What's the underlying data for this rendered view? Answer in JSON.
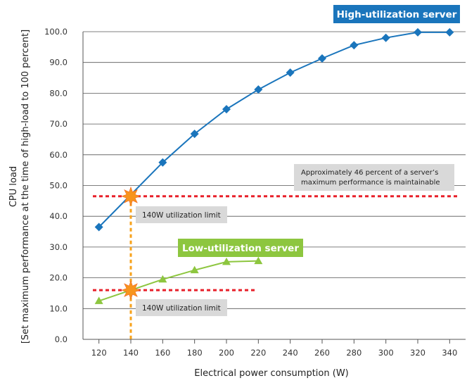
{
  "chart_data": {
    "type": "line",
    "xlabel": "Electrical power consumption (W)",
    "ylabel_line1": "CPU load",
    "ylabel_line2": "[Set maximum performance at the time of high-load to 100 percent]",
    "x_ticks": [
      "120",
      "140",
      "160",
      "180",
      "200",
      "220",
      "240",
      "260",
      "280",
      "300",
      "320",
      "340"
    ],
    "y_ticks": [
      "0.0",
      "10.0",
      "20.0",
      "30.0",
      "40.0",
      "50.0",
      "60.0",
      "70.0",
      "80.0",
      "90.0",
      "100.0"
    ],
    "xlim": [
      110,
      350
    ],
    "ylim": [
      0,
      100
    ],
    "grid": "horizontal",
    "series": [
      {
        "name": "High-utilization server",
        "color": "#1a75bc",
        "marker": "diamond",
        "x": [
          120,
          160,
          180,
          200,
          220,
          240,
          260,
          280,
          300,
          320,
          340
        ],
        "y": [
          36.5,
          57.5,
          66.8,
          74.8,
          81.2,
          86.7,
          91.3,
          95.6,
          98.0,
          99.8,
          99.8
        ]
      },
      {
        "name": "Low-utilization server",
        "color": "#8dc63f",
        "marker": "triangle",
        "x": [
          120,
          160,
          180,
          200,
          220
        ],
        "y": [
          12.5,
          19.5,
          22.5,
          25.2,
          25.5
        ]
      }
    ],
    "annotations": {
      "high_limit": {
        "x": 140,
        "y": 46.5,
        "label": "140W utilization limit"
      },
      "low_limit": {
        "x": 140,
        "y": 16,
        "label": "140W utilization limit"
      },
      "note": [
        "Approximately 46 percent of a server’s",
        "maximum performance is maintainable"
      ],
      "limit_line_color": "#e8202a",
      "vertical_line_color": "#f7a21b",
      "star_color": "#f7941d",
      "label_box_color": "#d9d9d9"
    }
  }
}
